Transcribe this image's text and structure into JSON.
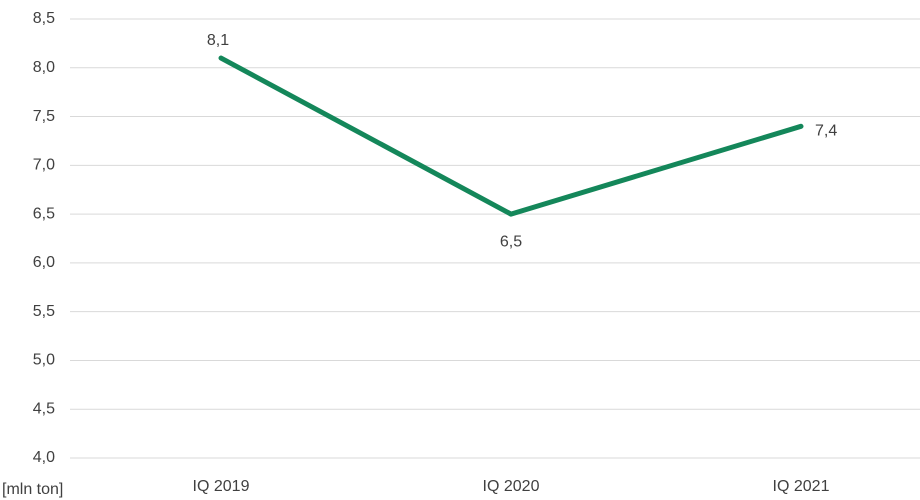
{
  "chart_data": {
    "type": "line",
    "y_axis_label": "[mln ton]",
    "categories": [
      "IQ 2019",
      "IQ 2020",
      "IQ 2021"
    ],
    "values": [
      8.1,
      6.5,
      7.4
    ],
    "value_labels": [
      "8,1",
      "6,5",
      "7,4"
    ],
    "color": "#14875a",
    "ylim": [
      4.0,
      8.5
    ],
    "yticks": [
      {
        "value": 4.0,
        "label": "4,0"
      },
      {
        "value": 4.5,
        "label": "4,5"
      },
      {
        "value": 5.0,
        "label": "5,0"
      },
      {
        "value": 5.5,
        "label": "5,5"
      },
      {
        "value": 6.0,
        "label": "6,0"
      },
      {
        "value": 6.5,
        "label": "6,5"
      },
      {
        "value": 7.0,
        "label": "7,0"
      },
      {
        "value": 7.5,
        "label": "7,5"
      },
      {
        "value": 8.0,
        "label": "8,0"
      },
      {
        "value": 8.5,
        "label": "8,5"
      }
    ],
    "grid": true
  }
}
